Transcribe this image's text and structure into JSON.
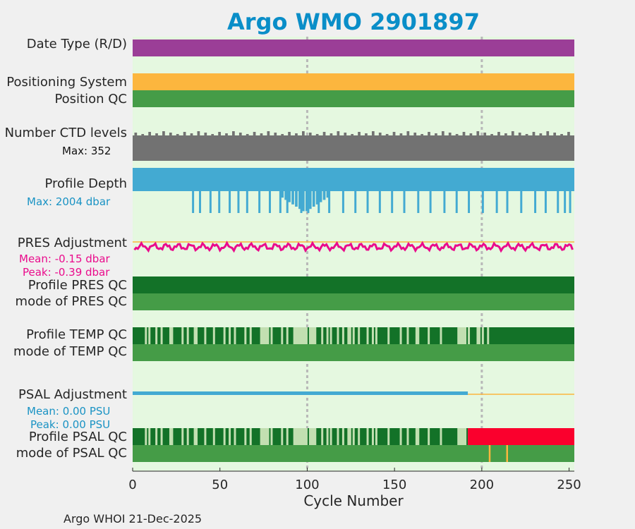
{
  "title": "Argo WMO 2901897",
  "footer": "Argo WHOI 21-Dec-2025",
  "colors": {
    "title": "#0a8ec8",
    "panel_bg": "#e5f8e0",
    "date_type": "#9b3e97",
    "positioning": "#fcb63e",
    "qc_good_light": "#459c47",
    "qc_good_dark": "#137228",
    "qc_probable": "#c2dfb1",
    "qc_bad": "#fa002d",
    "qc_flag_orange": "#fcb63e",
    "ctd": "#727272",
    "depth": "#43aad2",
    "pres_adj": "#ea0b8c",
    "psal_adj": "#43aad2",
    "zero_line": "#fcb63e",
    "pres_text": "#ea0b8c",
    "psal_text": "#1a93c4",
    "depth_text": "#1a93c4"
  },
  "rows": {
    "date_type": "Date Type (R/D)",
    "positioning_system": "Positioning System",
    "position_qc": "Position QC",
    "ctd_levels": "Number CTD levels",
    "ctd_max": "Max: 352",
    "profile_depth": "Profile Depth",
    "depth_max": "Max: 2004 dbar",
    "pres_adjustment": "PRES Adjustment",
    "pres_mean": "Mean: -0.15 dbar",
    "pres_peak": "Peak: -0.39 dbar",
    "profile_pres_qc": "Profile PRES QC",
    "mode_pres_qc": "mode of PRES QC",
    "profile_temp_qc": "Profile TEMP QC",
    "mode_temp_qc": "mode of TEMP QC",
    "psal_adjustment": "PSAL Adjustment",
    "psal_mean": "Mean: 0.00 PSU",
    "psal_peak": "Peak: 0.00 PSU",
    "profile_psal_qc": "Profile PSAL QC",
    "mode_psal_qc": "mode of PSAL QC"
  },
  "chart_data": {
    "type": "bar",
    "title": "Argo WMO 2901897",
    "xlabel": "Cycle Number",
    "ylabel": "",
    "xlim": [
      0,
      253
    ],
    "xticks": [
      "0",
      "50",
      "100",
      "150",
      "200",
      "250"
    ],
    "xtick_values": [
      0,
      50,
      100,
      150,
      200,
      250
    ],
    "dashed_gridlines_x": [
      100,
      200
    ],
    "ctd_levels_max": 352,
    "profile_depth_max_dbar": 2004,
    "depth_dips": [
      {
        "cycle": 34,
        "depth": 1000
      },
      {
        "cycle": 38,
        "depth": 1000
      },
      {
        "cycle": 44,
        "depth": 1000
      },
      {
        "cycle": 49,
        "depth": 1000
      },
      {
        "cycle": 55,
        "depth": 1000
      },
      {
        "cycle": 60,
        "depth": 1000
      },
      {
        "cycle": 65,
        "depth": 1000
      },
      {
        "cycle": 72,
        "depth": 1000
      },
      {
        "cycle": 78,
        "depth": 1000
      },
      {
        "cycle": 84,
        "depth": 1000
      },
      {
        "cycle": 88,
        "depth": 1000
      },
      {
        "cycle": 96,
        "depth": 1000
      },
      {
        "cycle": 100,
        "depth": 1000
      },
      {
        "cycle": 106,
        "depth": 1000
      },
      {
        "cycle": 112,
        "depth": 1000
      },
      {
        "cycle": 120,
        "depth": 1000
      },
      {
        "cycle": 127,
        "depth": 1000
      },
      {
        "cycle": 134,
        "depth": 1000
      },
      {
        "cycle": 141,
        "depth": 1000
      },
      {
        "cycle": 148,
        "depth": 1000
      },
      {
        "cycle": 155,
        "depth": 1000
      },
      {
        "cycle": 163,
        "depth": 1000
      },
      {
        "cycle": 170,
        "depth": 1000
      },
      {
        "cycle": 178,
        "depth": 1000
      },
      {
        "cycle": 185,
        "depth": 1000
      },
      {
        "cycle": 192,
        "depth": 1000
      },
      {
        "cycle": 200,
        "depth": 1000
      },
      {
        "cycle": 208,
        "depth": 1000
      },
      {
        "cycle": 214,
        "depth": 1000
      },
      {
        "cycle": 222,
        "depth": 1000
      },
      {
        "cycle": 230,
        "depth": 1000
      },
      {
        "cycle": 236,
        "depth": 1000
      },
      {
        "cycle": 243,
        "depth": 1000
      },
      {
        "cycle": 247,
        "depth": 1000
      },
      {
        "cycle": 250,
        "depth": 1000
      }
    ],
    "pres_adjustment_mean_dbar": -0.15,
    "pres_adjustment_peak_dbar": -0.39,
    "psal_adjustment_mean_psu": 0.0,
    "psal_adjustment_peak_psu": 0.0,
    "psal_adjusted_until_cycle": 192,
    "psal_profile_qc_bad_from_cycle": 192,
    "psal_mode_qc_flags_cycles": [
      204,
      214
    ],
    "temp_qc_probable_cycles": [
      7,
      9,
      13,
      16,
      21,
      22,
      28,
      31,
      35,
      36,
      41,
      46,
      52,
      55,
      58,
      64,
      67,
      73,
      74,
      75,
      76,
      77,
      79,
      85,
      88,
      92,
      93,
      94,
      95,
      96,
      97,
      98,
      99,
      101,
      102,
      103,
      104,
      108,
      111,
      113,
      117,
      120,
      123,
      124,
      126,
      129,
      134,
      137,
      139,
      146,
      153,
      157,
      162,
      163,
      169,
      176,
      186,
      187,
      188,
      189,
      190,
      192,
      197,
      198,
      200,
      203
    ],
    "psal_qc_probable_cycles": [
      7,
      9,
      13,
      16,
      21,
      22,
      28,
      31,
      35,
      36,
      41,
      46,
      52,
      55,
      58,
      64,
      67,
      73,
      74,
      75,
      76,
      77,
      79,
      85,
      88,
      92,
      93,
      94,
      95,
      96,
      97,
      98,
      99,
      101,
      102,
      103,
      104,
      108,
      111,
      113,
      117,
      120,
      123,
      124,
      126,
      129,
      134,
      137,
      139,
      146,
      153,
      157,
      162,
      163,
      169,
      176,
      186,
      187,
      188,
      189,
      190
    ]
  }
}
